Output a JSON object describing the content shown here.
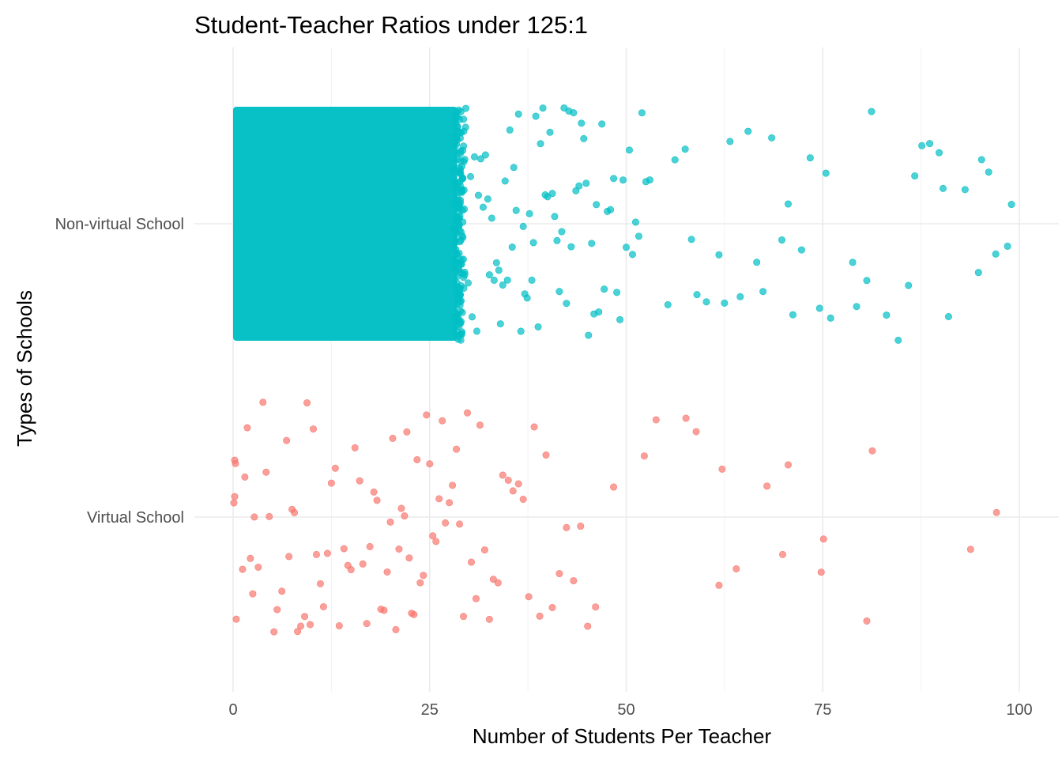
{
  "chart_data": {
    "type": "scatter",
    "title": "Student-Teacher Ratios under 125:1",
    "xlabel": "Number of Students Per Teacher",
    "ylabel": "Types of Schools",
    "xlim": [
      0,
      100
    ],
    "x_ticks": [
      "0",
      "25",
      "50",
      "75",
      "100"
    ],
    "categories": [
      "Non-virtual School",
      "Virtual School"
    ],
    "grid": true,
    "legend": "none",
    "series": [
      {
        "category": "Non-virtual School",
        "color": "#00BFC4",
        "dense_range": [
          0,
          28.5
        ],
        "values": [
          28.5,
          29.0,
          29.3,
          29.6,
          29.9,
          30.2,
          30.4,
          30.7,
          31.0,
          31.2,
          31.5,
          31.8,
          32.1,
          32.4,
          32.6,
          32.9,
          33.2,
          33.5,
          33.8,
          34.0,
          34.3,
          34.6,
          34.9,
          35.2,
          35.5,
          35.7,
          36.0,
          36.3,
          36.6,
          36.9,
          37.1,
          37.4,
          37.7,
          38.0,
          38.2,
          38.5,
          38.8,
          39.1,
          39.4,
          39.7,
          40.0,
          40.3,
          40.6,
          40.9,
          41.2,
          41.5,
          41.8,
          42.1,
          42.4,
          42.7,
          43.0,
          43.3,
          43.6,
          44.0,
          44.3,
          44.6,
          44.9,
          45.2,
          45.6,
          45.9,
          46.2,
          46.5,
          46.9,
          47.2,
          47.6,
          48.0,
          48.4,
          48.8,
          49.2,
          49.6,
          50.0,
          50.4,
          50.8,
          51.2,
          51.6,
          52.0,
          52.5,
          53.0,
          55.3,
          56.2,
          57.5,
          58.3,
          59.0,
          60.2,
          61.8,
          62.5,
          63.2,
          64.5,
          65.5,
          66.6,
          67.4,
          68.5,
          69.8,
          70.6,
          71.2,
          72.3,
          73.4,
          74.6,
          75.4,
          76.0,
          78.8,
          79.3,
          80.6,
          81.2,
          83.1,
          84.6,
          85.9,
          86.7,
          87.6,
          88.6,
          89.8,
          90.3,
          91.0,
          93.1,
          94.8,
          95.2,
          96.1,
          97.0,
          98.5,
          99.0
        ]
      },
      {
        "category": "Virtual School",
        "color": "#F8766D",
        "values": [
          0.1,
          0.2,
          0.3,
          0.2,
          0.4,
          1.2,
          1.5,
          1.8,
          2.2,
          2.5,
          2.7,
          3.2,
          3.8,
          4.2,
          4.6,
          5.2,
          5.6,
          6.2,
          6.8,
          7.1,
          7.5,
          7.8,
          8.2,
          8.6,
          9.1,
          9.4,
          9.8,
          10.2,
          10.6,
          11.1,
          11.5,
          12.0,
          12.5,
          13.0,
          13.5,
          14.1,
          14.6,
          15.0,
          15.5,
          16.1,
          16.5,
          17.0,
          17.4,
          17.9,
          18.3,
          18.8,
          19.2,
          19.6,
          20.0,
          20.3,
          20.7,
          21.1,
          21.4,
          21.8,
          22.1,
          22.4,
          22.7,
          23.0,
          23.4,
          23.8,
          24.2,
          24.6,
          25.0,
          25.4,
          25.8,
          26.2,
          26.6,
          27.0,
          27.5,
          27.9,
          28.4,
          28.8,
          29.3,
          29.8,
          30.3,
          30.9,
          31.4,
          32.0,
          32.6,
          33.1,
          33.7,
          34.3,
          35.0,
          35.6,
          36.3,
          36.9,
          37.6,
          38.3,
          39.0,
          39.8,
          40.6,
          41.5,
          42.4,
          43.3,
          44.2,
          45.1,
          46.1,
          48.4,
          52.3,
          53.8,
          57.6,
          58.9,
          61.8,
          62.2,
          64.0,
          67.9,
          69.9,
          70.6,
          74.8,
          75.1,
          80.6,
          81.3,
          93.8,
          97.1
        ]
      }
    ]
  }
}
